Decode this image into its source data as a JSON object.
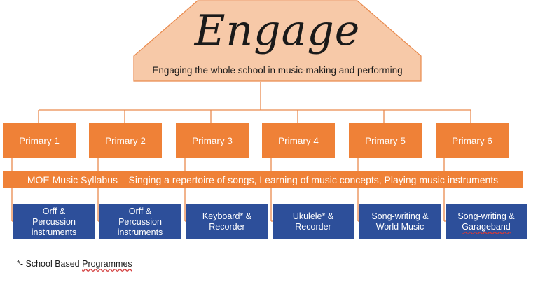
{
  "title": "Engage",
  "subtitle": "Engaging the whole school in music-making and performing",
  "grades": [
    "Primary 1",
    "Primary 2",
    "Primary 3",
    "Primary 4",
    "Primary 5",
    "Primary 6"
  ],
  "syllabus": "MOE Music Syllabus – Singing a repertoire of songs, Learning of music concepts, Playing music instruments",
  "programs": [
    {
      "line1": "Orff &",
      "line2": "Percussion",
      "line3": "instruments"
    },
    {
      "line1": "Orff &",
      "line2": "Percussion",
      "line3": "instruments"
    },
    {
      "line1": "Keyboard* &",
      "line2": "Recorder",
      "line3": ""
    },
    {
      "line1": "Ukulele* &",
      "line2": "Recorder",
      "line3": ""
    },
    {
      "line1": "Song-writing &",
      "line2": "World Music",
      "line3": ""
    },
    {
      "line1": "Song-writing &",
      "line2": "Garageband",
      "line3": ""
    }
  ],
  "footnote": {
    "prefix": "*- School Based ",
    "word": "Programmes"
  },
  "colors": {
    "orange": "#ef8137",
    "header_fill": "#f7c9a8",
    "blue": "#2d4f9a",
    "connector": "#e98a4d"
  }
}
